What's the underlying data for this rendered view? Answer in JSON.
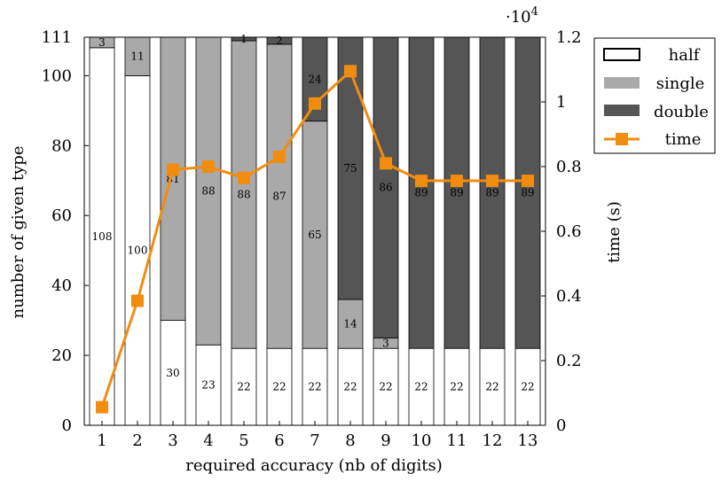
{
  "chart_data": {
    "type": "bar",
    "stacked": true,
    "categories": [
      "1",
      "2",
      "3",
      "4",
      "5",
      "6",
      "7",
      "8",
      "9",
      "10",
      "11",
      "12",
      "13"
    ],
    "series": [
      {
        "name": "half",
        "values": [
          108,
          100,
          30,
          23,
          22,
          22,
          22,
          22,
          22,
          22,
          22,
          22,
          22
        ],
        "color": "#ffffff"
      },
      {
        "name": "single",
        "values": [
          3,
          11,
          81,
          88,
          88,
          87,
          65,
          14,
          3,
          0,
          0,
          0,
          0
        ],
        "color": "#a9a9a9"
      },
      {
        "name": "double",
        "values": [
          0,
          0,
          0,
          0,
          1,
          2,
          24,
          75,
          86,
          89,
          89,
          89,
          89
        ],
        "color": "#555555"
      }
    ],
    "value_labels": [
      [
        "108",
        "3",
        ""
      ],
      [
        "100",
        "11",
        ""
      ],
      [
        "30",
        "81",
        ""
      ],
      [
        "23",
        "88",
        ""
      ],
      [
        "22",
        "88",
        "1"
      ],
      [
        "22",
        "87",
        "2"
      ],
      [
        "22",
        "65",
        "24"
      ],
      [
        "22",
        "14",
        "75"
      ],
      [
        "22",
        "3",
        "86"
      ],
      [
        "22",
        "",
        "89"
      ],
      [
        "22",
        "",
        "89"
      ],
      [
        "22",
        "",
        "89"
      ],
      [
        "22",
        "",
        "89"
      ]
    ],
    "line_series": {
      "name": "time",
      "values": [
        560,
        3850,
        7900,
        8000,
        7650,
        8300,
        9950,
        10950,
        8100,
        7560,
        7560,
        7560,
        7560
      ],
      "color": "#f28c0f"
    },
    "xlabel": "required accuracy (nb of digits)",
    "ylabel": "number of given type",
    "y2label": "time (s)",
    "ylim": [
      0,
      111
    ],
    "yticks": [
      "0",
      "20",
      "40",
      "60",
      "80",
      "100",
      "111"
    ],
    "y2lim": [
      0,
      12000
    ],
    "y2ticks": [
      "0",
      "0.2",
      "0.4",
      "0.6",
      "0.8",
      "1",
      "1.2"
    ],
    "y2_multiplier": "·10",
    "y2_multiplier_exp": "4",
    "legend_position": "top-right outside",
    "grid": false
  }
}
